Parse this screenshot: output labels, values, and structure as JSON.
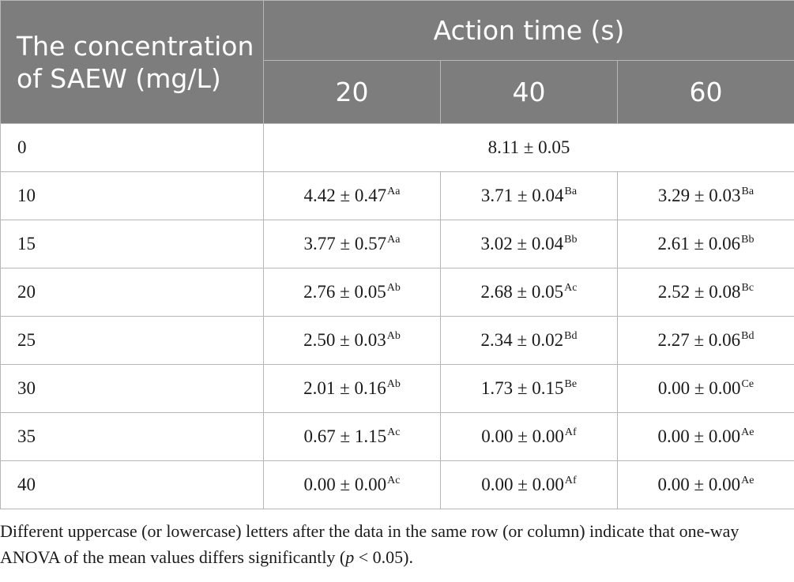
{
  "table": {
    "concentration_header": "The concentration of SAEW (mg/L)",
    "action_time_header": "Action time (s)",
    "time_columns": [
      "20",
      "40",
      "60"
    ],
    "rows": [
      {
        "concentration": "0",
        "merged": "8.11 ± 0.05"
      },
      {
        "concentration": "10",
        "cells": [
          {
            "value": "4.42 ± 0.47",
            "sig": "Aa"
          },
          {
            "value": "3.71 ± 0.04",
            "sig": "Ba"
          },
          {
            "value": "3.29 ± 0.03",
            "sig": "Ba"
          }
        ]
      },
      {
        "concentration": "15",
        "cells": [
          {
            "value": "3.77 ± 0.57",
            "sig": "Aa"
          },
          {
            "value": "3.02 ± 0.04",
            "sig": "Bb"
          },
          {
            "value": "2.61 ± 0.06",
            "sig": "Bb"
          }
        ]
      },
      {
        "concentration": "20",
        "cells": [
          {
            "value": "2.76 ± 0.05",
            "sig": "Ab"
          },
          {
            "value": "2.68 ± 0.05",
            "sig": "Ac"
          },
          {
            "value": "2.52 ± 0.08",
            "sig": "Bc"
          }
        ]
      },
      {
        "concentration": "25",
        "cells": [
          {
            "value": "2.50 ± 0.03",
            "sig": "Ab"
          },
          {
            "value": "2.34 ± 0.02",
            "sig": "Bd"
          },
          {
            "value": "2.27 ± 0.06",
            "sig": "Bd"
          }
        ]
      },
      {
        "concentration": "30",
        "cells": [
          {
            "value": "2.01 ± 0.16",
            "sig": "Ab"
          },
          {
            "value": "1.73 ± 0.15",
            "sig": "Be"
          },
          {
            "value": "0.00 ± 0.00",
            "sig": "Ce"
          }
        ]
      },
      {
        "concentration": "35",
        "cells": [
          {
            "value": "0.67 ± 1.15",
            "sig": "Ac"
          },
          {
            "value": "0.00 ± 0.00",
            "sig": "Af"
          },
          {
            "value": "0.00 ± 0.00",
            "sig": "Ae"
          }
        ]
      },
      {
        "concentration": "40",
        "cells": [
          {
            "value": "0.00 ± 0.00",
            "sig": "Ac"
          },
          {
            "value": "0.00 ± 0.00",
            "sig": "Af"
          },
          {
            "value": "0.00 ± 0.00",
            "sig": "Ae"
          }
        ]
      }
    ]
  },
  "footnote": {
    "text_before": "Different uppercase (or lowercase) letters after the data in the same row (or column) indicate that one-way ANOVA of the mean values differs significantly (",
    "p_symbol": "p",
    "text_after": " < 0.05)."
  },
  "colors": {
    "header_background": "#7d7d7d",
    "header_text": "#ffffff",
    "border": "#b7b7b7"
  }
}
